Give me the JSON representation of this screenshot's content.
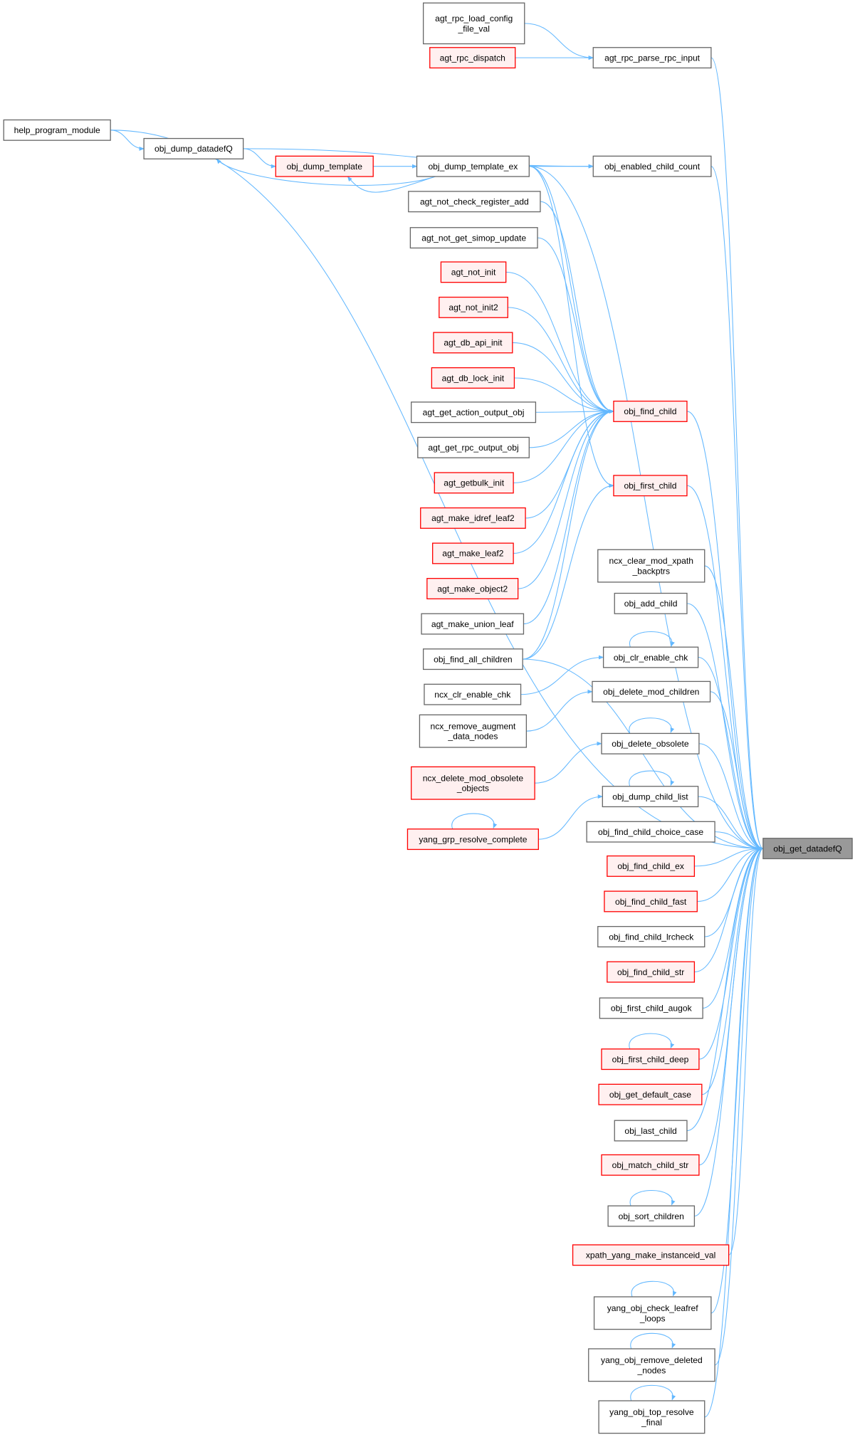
{
  "colors": {
    "edge": "#63b8ff",
    "red_border": "#ff0000",
    "red_fill": "#fff0f0",
    "normal_border": "#666666",
    "focus_fill": "#999999"
  },
  "nodes": [
    {
      "id": "agt_rpc_load_config_file_val",
      "label": "agt_rpc_load_config\n_file_val",
      "style": "normal"
    },
    {
      "id": "agt_rpc_dispatch",
      "label": "agt_rpc_dispatch",
      "style": "red"
    },
    {
      "id": "agt_rpc_parse_rpc_input",
      "label": "agt_rpc_parse_rpc_input",
      "style": "normal"
    },
    {
      "id": "help_program_module",
      "label": "help_program_module",
      "style": "normal"
    },
    {
      "id": "obj_dump_datadefQ",
      "label": "obj_dump_datadefQ",
      "style": "normal"
    },
    {
      "id": "obj_dump_template",
      "label": "obj_dump_template",
      "style": "red"
    },
    {
      "id": "obj_dump_template_ex",
      "label": "obj_dump_template_ex",
      "style": "normal"
    },
    {
      "id": "obj_enabled_child_count",
      "label": "obj_enabled_child_count",
      "style": "normal"
    },
    {
      "id": "agt_not_check_register_add",
      "label": "agt_not_check_register_add",
      "style": "normal"
    },
    {
      "id": "agt_not_get_simop_update",
      "label": "agt_not_get_simop_update",
      "style": "normal"
    },
    {
      "id": "agt_not_init",
      "label": "agt_not_init",
      "style": "red"
    },
    {
      "id": "agt_not_init2",
      "label": "agt_not_init2",
      "style": "red"
    },
    {
      "id": "agt_db_api_init",
      "label": "agt_db_api_init",
      "style": "red"
    },
    {
      "id": "agt_db_lock_init",
      "label": "agt_db_lock_init",
      "style": "red"
    },
    {
      "id": "agt_get_action_output_obj",
      "label": "agt_get_action_output_obj",
      "style": "normal"
    },
    {
      "id": "agt_get_rpc_output_obj",
      "label": "agt_get_rpc_output_obj",
      "style": "normal"
    },
    {
      "id": "agt_getbulk_init",
      "label": "agt_getbulk_init",
      "style": "red"
    },
    {
      "id": "obj_find_child",
      "label": "obj_find_child",
      "style": "red"
    },
    {
      "id": "obj_first_child",
      "label": "obj_first_child",
      "style": "red"
    },
    {
      "id": "agt_make_idref_leaf2",
      "label": "agt_make_idref_leaf2",
      "style": "red"
    },
    {
      "id": "agt_make_leaf2",
      "label": "agt_make_leaf2",
      "style": "red"
    },
    {
      "id": "agt_make_object2",
      "label": "agt_make_object2",
      "style": "red"
    },
    {
      "id": "agt_make_union_leaf",
      "label": "agt_make_union_leaf",
      "style": "normal"
    },
    {
      "id": "obj_find_all_children",
      "label": "obj_find_all_children",
      "style": "normal"
    },
    {
      "id": "ncx_clr_enable_chk",
      "label": "ncx_clr_enable_chk",
      "style": "normal"
    },
    {
      "id": "ncx_remove_augment_data_nodes",
      "label": "ncx_remove_augment\n_data_nodes",
      "style": "normal"
    },
    {
      "id": "ncx_delete_mod_obsolete_objects",
      "label": "ncx_delete_mod_obsolete\n_objects",
      "style": "red"
    },
    {
      "id": "yang_grp_resolve_complete",
      "label": "yang_grp_resolve_complete",
      "style": "red"
    },
    {
      "id": "ncx_clear_mod_xpath_backptrs",
      "label": "ncx_clear_mod_xpath\n_backptrs",
      "style": "normal"
    },
    {
      "id": "obj_add_child",
      "label": "obj_add_child",
      "style": "normal"
    },
    {
      "id": "obj_clr_enable_chk",
      "label": "obj_clr_enable_chk",
      "style": "normal"
    },
    {
      "id": "obj_delete_mod_children",
      "label": "obj_delete_mod_children",
      "style": "normal"
    },
    {
      "id": "obj_delete_obsolete",
      "label": "obj_delete_obsolete",
      "style": "normal"
    },
    {
      "id": "obj_dump_child_list",
      "label": "obj_dump_child_list",
      "style": "normal"
    },
    {
      "id": "obj_find_child_choice_case",
      "label": "obj_find_child_choice_case",
      "style": "normal"
    },
    {
      "id": "obj_get_datadefQ",
      "label": "obj_get_datadefQ",
      "style": "focus"
    },
    {
      "id": "obj_find_child_ex",
      "label": "obj_find_child_ex",
      "style": "red"
    },
    {
      "id": "obj_find_child_fast",
      "label": "obj_find_child_fast",
      "style": "red"
    },
    {
      "id": "obj_find_child_lrcheck",
      "label": "obj_find_child_lrcheck",
      "style": "normal"
    },
    {
      "id": "obj_find_child_str",
      "label": "obj_find_child_str",
      "style": "red"
    },
    {
      "id": "obj_first_child_augok",
      "label": "obj_first_child_augok",
      "style": "normal"
    },
    {
      "id": "obj_first_child_deep",
      "label": "obj_first_child_deep",
      "style": "red"
    },
    {
      "id": "obj_get_default_case",
      "label": "obj_get_default_case",
      "style": "red"
    },
    {
      "id": "obj_last_child",
      "label": "obj_last_child",
      "style": "normal"
    },
    {
      "id": "obj_match_child_str",
      "label": "obj_match_child_str",
      "style": "red"
    },
    {
      "id": "obj_sort_children",
      "label": "obj_sort_children",
      "style": "normal"
    },
    {
      "id": "xpath_yang_make_instanceid_val",
      "label": "xpath_yang_make_instanceid_val",
      "style": "red"
    },
    {
      "id": "yang_obj_check_leafref_loops",
      "label": "yang_obj_check_leafref\n_loops",
      "style": "normal"
    },
    {
      "id": "yang_obj_remove_deleted_nodes",
      "label": "yang_obj_remove_deleted\n_nodes",
      "style": "normal"
    },
    {
      "id": "yang_obj_top_resolve_final",
      "label": "yang_obj_top_resolve\n_final",
      "style": "normal"
    }
  ],
  "edges": [
    [
      "agt_rpc_load_config_file_val",
      "agt_rpc_parse_rpc_input"
    ],
    [
      "agt_rpc_dispatch",
      "agt_rpc_parse_rpc_input"
    ],
    [
      "help_program_module",
      "obj_dump_datadefQ"
    ],
    [
      "obj_dump_datadefQ",
      "obj_dump_template"
    ],
    [
      "obj_dump_datadefQ",
      "obj_enabled_child_count"
    ],
    [
      "obj_dump_template",
      "obj_dump_template_ex"
    ],
    [
      "obj_dump_template_ex",
      "obj_dump_template"
    ],
    [
      "obj_dump_template_ex",
      "obj_dump_datadefQ"
    ],
    [
      "obj_dump_template_ex",
      "obj_enabled_child_count"
    ],
    [
      "obj_dump_template_ex",
      "obj_find_child"
    ],
    [
      "obj_dump_template_ex",
      "obj_first_child"
    ],
    [
      "agt_not_check_register_add",
      "obj_find_child"
    ],
    [
      "agt_not_get_simop_update",
      "obj_find_child"
    ],
    [
      "agt_not_init",
      "obj_find_child"
    ],
    [
      "agt_not_init2",
      "obj_find_child"
    ],
    [
      "agt_db_api_init",
      "obj_find_child"
    ],
    [
      "agt_db_lock_init",
      "obj_find_child"
    ],
    [
      "agt_get_action_output_obj",
      "obj_find_child"
    ],
    [
      "agt_get_rpc_output_obj",
      "obj_find_child"
    ],
    [
      "agt_getbulk_init",
      "obj_find_child"
    ],
    [
      "agt_make_idref_leaf2",
      "obj_find_child"
    ],
    [
      "agt_make_leaf2",
      "obj_find_child"
    ],
    [
      "agt_make_object2",
      "obj_find_child"
    ],
    [
      "agt_make_union_leaf",
      "obj_find_child"
    ],
    [
      "obj_find_all_children",
      "obj_find_child"
    ],
    [
      "obj_find_all_children",
      "obj_first_child"
    ],
    [
      "ncx_clr_enable_chk",
      "obj_clr_enable_chk"
    ],
    [
      "ncx_remove_augment_data_nodes",
      "obj_delete_mod_children"
    ],
    [
      "ncx_delete_mod_obsolete_objects",
      "obj_delete_obsolete"
    ],
    [
      "yang_grp_resolve_complete",
      "obj_dump_child_list"
    ],
    [
      "yang_grp_resolve_complete",
      "yang_grp_resolve_complete"
    ],
    [
      "obj_clr_enable_chk",
      "obj_clr_enable_chk"
    ],
    [
      "obj_delete_obsolete",
      "obj_delete_obsolete"
    ],
    [
      "obj_dump_child_list",
      "obj_dump_child_list"
    ],
    [
      "obj_first_child_deep",
      "obj_first_child_deep"
    ],
    [
      "obj_sort_children",
      "obj_sort_children"
    ],
    [
      "yang_obj_check_leafref_loops",
      "yang_obj_check_leafref_loops"
    ],
    [
      "yang_obj_remove_deleted_nodes",
      "yang_obj_remove_deleted_nodes"
    ],
    [
      "yang_obj_top_resolve_final",
      "yang_obj_top_resolve_final"
    ],
    [
      "agt_rpc_parse_rpc_input",
      "obj_get_datadefQ"
    ],
    [
      "help_program_module",
      "obj_get_datadefQ"
    ],
    [
      "obj_dump_template_ex",
      "obj_get_datadefQ"
    ],
    [
      "obj_enabled_child_count",
      "obj_get_datadefQ"
    ],
    [
      "obj_find_child",
      "obj_get_datadefQ"
    ],
    [
      "obj_first_child",
      "obj_get_datadefQ"
    ],
    [
      "obj_find_all_children",
      "obj_get_datadefQ"
    ],
    [
      "ncx_clear_mod_xpath_backptrs",
      "obj_get_datadefQ"
    ],
    [
      "obj_add_child",
      "obj_get_datadefQ"
    ],
    [
      "obj_clr_enable_chk",
      "obj_get_datadefQ"
    ],
    [
      "obj_delete_mod_children",
      "obj_get_datadefQ"
    ],
    [
      "obj_delete_obsolete",
      "obj_get_datadefQ"
    ],
    [
      "obj_dump_child_list",
      "obj_get_datadefQ"
    ],
    [
      "obj_find_child_choice_case",
      "obj_get_datadefQ"
    ],
    [
      "obj_find_child_ex",
      "obj_get_datadefQ"
    ],
    [
      "obj_find_child_fast",
      "obj_get_datadefQ"
    ],
    [
      "obj_find_child_lrcheck",
      "obj_get_datadefQ"
    ],
    [
      "obj_find_child_str",
      "obj_get_datadefQ"
    ],
    [
      "obj_first_child_augok",
      "obj_get_datadefQ"
    ],
    [
      "obj_first_child_deep",
      "obj_get_datadefQ"
    ],
    [
      "obj_get_default_case",
      "obj_get_datadefQ"
    ],
    [
      "obj_last_child",
      "obj_get_datadefQ"
    ],
    [
      "obj_match_child_str",
      "obj_get_datadefQ"
    ],
    [
      "obj_sort_children",
      "obj_get_datadefQ"
    ],
    [
      "xpath_yang_make_instanceid_val",
      "obj_get_datadefQ"
    ],
    [
      "yang_obj_check_leafref_loops",
      "obj_get_datadefQ"
    ],
    [
      "yang_obj_remove_deleted_nodes",
      "obj_get_datadefQ"
    ],
    [
      "yang_obj_top_resolve_final",
      "obj_get_datadefQ"
    ]
  ]
}
